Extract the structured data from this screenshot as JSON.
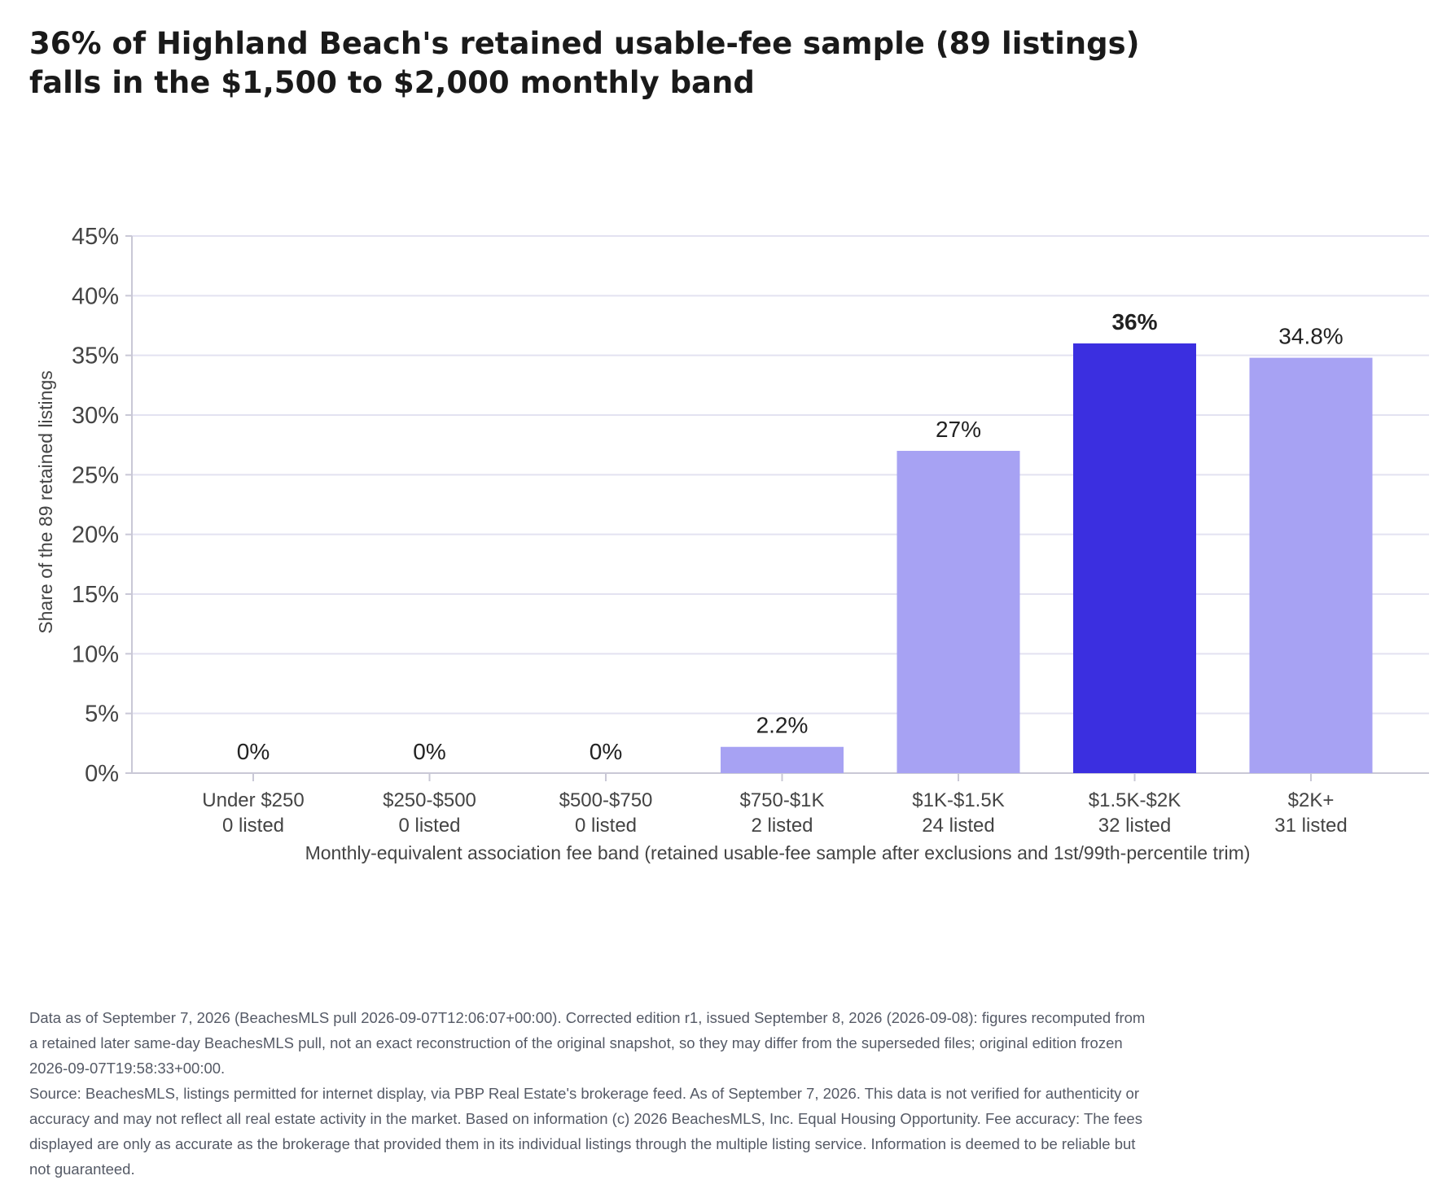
{
  "title_lines": [
    "36% of Highland Beach's retained usable-fee sample (89 listings)",
    "falls in the $1,500 to $2,000 monthly band"
  ],
  "chart_data": {
    "type": "bar",
    "title": "36% of Highland Beach's retained usable-fee sample (89 listings) falls in the $1,500 to $2,000 monthly band",
    "categories": [
      "Under $250",
      "$250-$500",
      "$500-$750",
      "$750-$1K",
      "$1K-$1.5K",
      "$1.5K-$2K",
      "$2K+"
    ],
    "category_counts": [
      "0 listed",
      "0 listed",
      "0 listed",
      "2 listed",
      "24 listed",
      "32 listed",
      "31 listed"
    ],
    "values": [
      0,
      0,
      0,
      2.2,
      27,
      36,
      34.8
    ],
    "value_labels": [
      "0%",
      "0%",
      "0%",
      "2.2%",
      "27%",
      "36%",
      "34.8%"
    ],
    "highlight_index": 5,
    "xlabel": "Monthly-equivalent association fee band (retained usable-fee sample after exclusions and 1st/99th-percentile trim)",
    "ylabel": "Share of the 89 retained listings",
    "ylim": [
      0,
      45
    ],
    "yticks": [
      0,
      5,
      10,
      15,
      20,
      25,
      30,
      35,
      40,
      45
    ],
    "ytick_labels": [
      "0%",
      "5%",
      "10%",
      "15%",
      "20%",
      "25%",
      "30%",
      "35%",
      "40%",
      "45%"
    ],
    "grid": true,
    "colors": {
      "bar": "#a7a2f3",
      "highlight": "#3b2fe0",
      "grid": "#e3e2f1",
      "axis": "#c9c8d6",
      "tick_text": "#444444"
    }
  },
  "notes": [
    "Data as of September 7, 2026 (BeachesMLS pull 2026-09-07T12:06:07+00:00). Corrected edition r1, issued September 8, 2026 (2026-09-08): figures recomputed from a retained later same-day BeachesMLS pull, not an exact reconstruction of the original snapshot, so they may differ from the superseded files; original edition frozen 2026-09-07T19:58:33+00:00.",
    "Source: BeachesMLS, listings permitted for internet display, via PBP Real Estate's brokerage feed. As of September 7, 2026. This data is not verified for authenticity or accuracy and may not reflect all real estate activity in the market. Based on information (c) 2026 BeachesMLS, Inc. Equal Housing Opportunity. Fee accuracy: The fees displayed are only as accurate as the brokerage that provided them in its individual listings through the multiple listing service. Information is deemed to be reliable but not guaranteed."
  ]
}
